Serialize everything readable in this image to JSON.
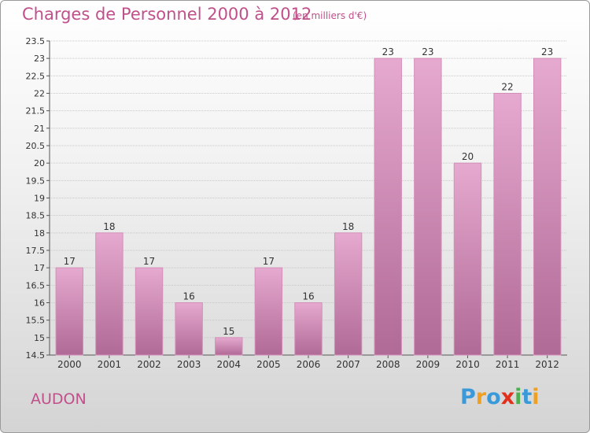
{
  "header": {
    "title": "Charges de Personnel 2000 à 2012",
    "subtitle": "(en milliers d'€)"
  },
  "footer": {
    "location": "AUDON",
    "logo_text": "Proxiti",
    "logo_letters": [
      {
        "char": "P",
        "color": "#3a9ad9"
      },
      {
        "char": "r",
        "color": "#f0a020"
      },
      {
        "char": "o",
        "color": "#3a9ad9"
      },
      {
        "char": "x",
        "color": "#e0301e"
      },
      {
        "char": "i",
        "color": "#4caf50"
      },
      {
        "char": "t",
        "color": "#3a9ad9"
      },
      {
        "char": "i",
        "color": "#f0a020"
      }
    ]
  },
  "colors": {
    "bar_top": "#e6a9cf",
    "bar_bottom": "#b06a96",
    "accent": "#c0508a"
  },
  "chart_data": {
    "type": "bar",
    "title": "Charges de Personnel 2000 à 2012",
    "subtitle": "(en milliers d'€)",
    "categories": [
      "2000",
      "2001",
      "2002",
      "2003",
      "2004",
      "2005",
      "2006",
      "2007",
      "2008",
      "2009",
      "2010",
      "2011",
      "2012"
    ],
    "values": [
      17,
      18,
      17,
      16,
      15,
      17,
      16,
      18,
      23,
      23,
      20,
      22,
      23
    ],
    "data_labels": [
      "17",
      "18",
      "17",
      "16",
      "15",
      "17",
      "16",
      "18",
      "23",
      "23",
      "20",
      "22",
      "23"
    ],
    "ylim": [
      14.5,
      23.5
    ],
    "yticks": [
      14.5,
      15,
      15.5,
      16,
      16.5,
      17,
      17.5,
      18,
      18.5,
      19,
      19.5,
      20,
      20.5,
      21,
      21.5,
      22,
      22.5,
      23,
      23.5
    ],
    "grid": true,
    "legend": "none"
  }
}
